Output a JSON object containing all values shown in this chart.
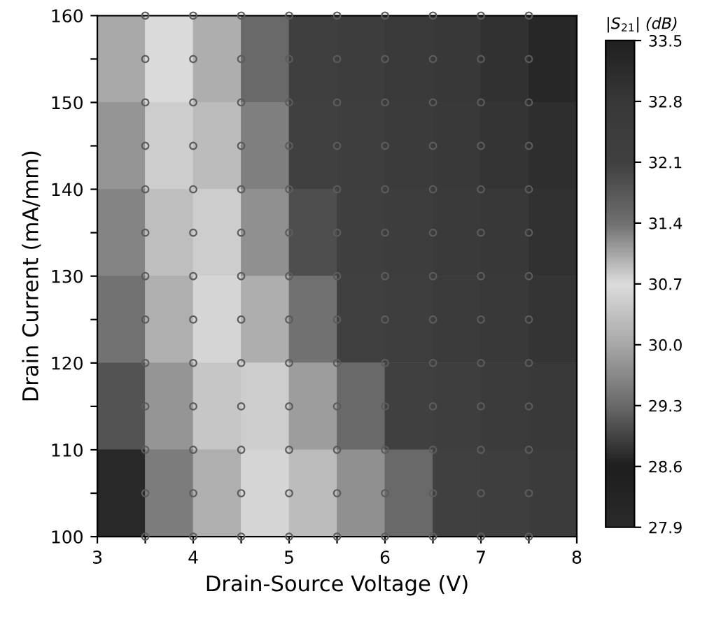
{
  "chart_data": [
    {
      "type": "heatmap",
      "xlabel": "Drain-Source Voltage (V)",
      "ylabel": "Drain Current (mA/mm)",
      "clabel": "|S$_{21}$| (dB)",
      "x": [
        3.25,
        3.75,
        4.25,
        4.75,
        5.25,
        5.75,
        6.25,
        6.75,
        7.25,
        7.75
      ],
      "y": [
        155,
        145,
        135,
        125,
        115,
        105
      ],
      "cells": [
        [
          30.0,
          30.7,
          31.0,
          31.5,
          32.2,
          32.4,
          32.6,
          32.8,
          33.0,
          33.3
        ],
        [
          29.8,
          30.5,
          30.9,
          31.3,
          32.1,
          32.3,
          32.5,
          32.7,
          32.9,
          33.1
        ],
        [
          29.6,
          30.3,
          30.8,
          31.2,
          31.9,
          32.2,
          32.4,
          32.6,
          32.8,
          33.0
        ],
        [
          29.4,
          30.1,
          30.6,
          31.0,
          31.4,
          32.1,
          32.3,
          32.5,
          32.7,
          32.9
        ],
        [
          29.1,
          29.8,
          30.4,
          30.8,
          31.1,
          31.5,
          32.1,
          32.3,
          32.5,
          32.7
        ],
        [
          28.7,
          29.5,
          30.1,
          30.6,
          30.9,
          31.2,
          31.5,
          32.1,
          32.3,
          32.5
        ]
      ],
      "colors": [
        "#2a2a2a",
        "#1e1e1e",
        "#6a6a6a",
        "#a8a8a8",
        "#dcdcdc",
        "#707070",
        "#404040",
        "#383838",
        "#202020"
      ],
      "clim": [
        27.9,
        33.5
      ],
      "cticks": [
        27.9,
        28.6,
        29.3,
        {
          "value": 30,
          "label": "30.0"
        },
        30.7,
        31.4,
        32.1,
        32.8,
        33.5
      ],
      "xlim": [
        3,
        8
      ],
      "ylim": [
        100,
        160
      ],
      "xticks": [
        3,
        {
          "value": 3.5,
          "label": null
        },
        4,
        {
          "value": 4.5,
          "label": null
        },
        5,
        {
          "value": 5.5,
          "label": null
        },
        6,
        {
          "value": 6.5,
          "label": null
        },
        7,
        {
          "value": 7.5,
          "label": null
        },
        8
      ],
      "yticks": [
        100,
        {
          "value": 105,
          "label": null
        },
        110,
        {
          "value": 115,
          "label": null
        },
        120,
        {
          "value": 125,
          "label": null
        },
        130,
        {
          "value": 135,
          "label": null
        },
        140,
        {
          "value": 145,
          "label": null
        },
        150,
        {
          "value": 155,
          "label": null
        },
        160
      ],
      "series": [
        {
          "type": "scatter",
          "color": "#5c5c5c",
          "marker": "circle",
          "x": [
            3.5,
            4,
            4.5,
            5,
            5.5,
            6,
            6.5,
            7,
            7.5,
            3.5,
            4,
            4.5,
            5,
            5.5,
            6,
            6.5,
            7,
            7.5,
            3.5,
            4,
            4.5,
            5,
            5.5,
            6,
            6.5,
            7,
            7.5,
            3.5,
            4,
            4.5,
            5,
            5.5,
            6,
            6.5,
            7,
            7.5,
            3.5,
            4,
            4.5,
            5,
            5.5,
            6,
            6.5,
            7,
            7.5,
            3.5,
            4,
            4.5,
            5,
            5.5,
            6,
            6.5,
            7,
            7.5,
            3.5,
            4,
            4.5,
            5,
            5.5,
            6,
            6.5,
            7,
            7.5,
            3.5,
            4,
            4.5,
            5,
            5.5,
            6,
            6.5,
            7,
            7.5,
            3.5,
            4,
            4.5,
            5,
            5.5,
            6,
            6.5,
            7,
            7.5,
            3.5,
            4,
            4.5,
            5,
            5.5,
            6,
            6.5,
            7,
            7.5,
            3.5,
            4,
            4.5,
            5,
            5.5,
            6,
            6.5,
            7,
            7.5,
            3.5,
            4,
            4.5,
            5,
            5.5,
            6,
            6.5,
            7,
            7.5,
            3.5,
            4,
            4.5,
            5,
            5.5,
            6,
            6.5,
            7,
            7.5
          ],
          "values": [
            100,
            100,
            100,
            100,
            100,
            100,
            100,
            100,
            100,
            105,
            105,
            105,
            105,
            105,
            105,
            105,
            105,
            105,
            110,
            110,
            110,
            110,
            110,
            110,
            110,
            110,
            110,
            115,
            115,
            115,
            115,
            115,
            115,
            115,
            115,
            115,
            120,
            120,
            120,
            120,
            120,
            120,
            120,
            120,
            120,
            125,
            125,
            125,
            125,
            125,
            125,
            125,
            125,
            125,
            130,
            130,
            130,
            130,
            130,
            130,
            130,
            130,
            130,
            135,
            135,
            135,
            135,
            135,
            135,
            135,
            135,
            135,
            140,
            140,
            140,
            140,
            140,
            140,
            140,
            140,
            140,
            145,
            145,
            145,
            145,
            145,
            145,
            145,
            145,
            145,
            150,
            150,
            150,
            150,
            150,
            150,
            150,
            150,
            150,
            155,
            155,
            155,
            155,
            155,
            155,
            155,
            155,
            155,
            160,
            160,
            160,
            160,
            160,
            160,
            160,
            160,
            160
          ]
        }
      ],
      "grid": false,
      "legend": false
    }
  ]
}
